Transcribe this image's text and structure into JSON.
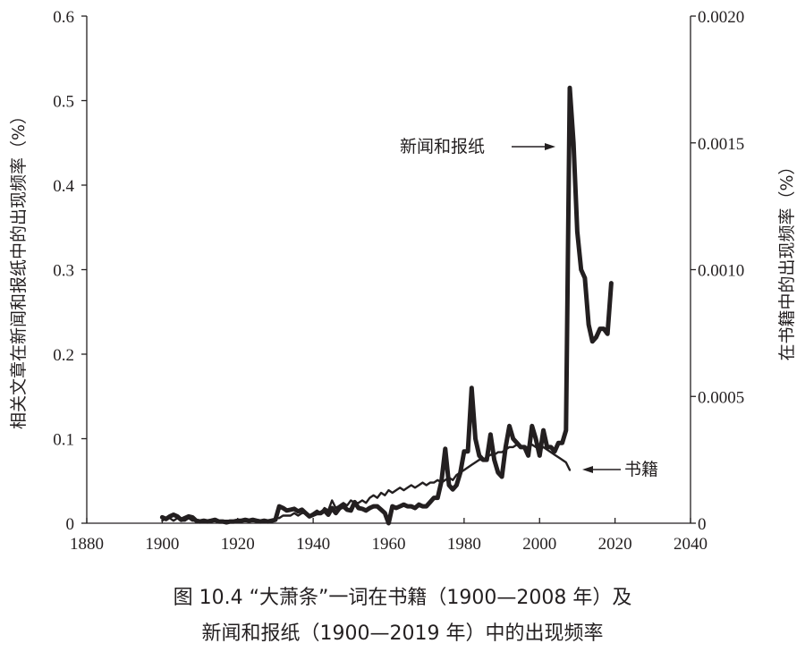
{
  "chart_data": {
    "type": "line",
    "title": "图 10.4  “大萧条”一词在书籍（1900—2008 年）及",
    "title_line2": "新闻和报纸（1900—2019 年）中的出现频率",
    "ylabel_left": "相关文章在新闻和报纸中的出现频率（%）",
    "ylabel_right": "在书籍中的出现频率（%）",
    "xlim": [
      1880,
      2040
    ],
    "ylim_left": [
      0,
      0.6
    ],
    "ylim_right": [
      0,
      0.002
    ],
    "x_ticks": [
      "1880",
      "1900",
      "1920",
      "1940",
      "1960",
      "1980",
      "2000",
      "2020",
      "2040"
    ],
    "y_ticks_left": [
      "0",
      "0.1",
      "0.2",
      "0.3",
      "0.4",
      "0.5",
      "0.6"
    ],
    "y_ticks_right": [
      "0",
      "0.0005",
      "0.0010",
      "0.0015",
      "0.0020"
    ],
    "series": [
      {
        "name": "新闻和报纸",
        "axis": "left",
        "start_year": 1900,
        "color": "#231f20",
        "values": [
          0.007,
          0.005,
          0.008,
          0.01,
          0.008,
          0.004,
          0.006,
          0.008,
          0.007,
          0.003,
          0.002,
          0.003,
          0.002,
          0.003,
          0.004,
          0.002,
          0.002,
          0.001,
          0.002,
          0.002,
          0.003,
          0.003,
          0.004,
          0.003,
          0.004,
          0.003,
          0.002,
          0.003,
          0.002,
          0.003,
          0.004,
          0.02,
          0.018,
          0.015,
          0.016,
          0.017,
          0.014,
          0.016,
          0.012,
          0.008,
          0.01,
          0.012,
          0.012,
          0.015,
          0.01,
          0.018,
          0.012,
          0.018,
          0.02,
          0.016,
          0.015,
          0.025,
          0.018,
          0.017,
          0.015,
          0.018,
          0.02,
          0.02,
          0.016,
          0.012,
          0.0,
          0.02,
          0.018,
          0.02,
          0.022,
          0.02,
          0.02,
          0.018,
          0.022,
          0.02,
          0.02,
          0.025,
          0.03,
          0.03,
          0.05,
          0.088,
          0.045,
          0.04,
          0.045,
          0.06,
          0.085,
          0.085,
          0.16,
          0.1,
          0.08,
          0.075,
          0.075,
          0.105,
          0.075,
          0.06,
          0.055,
          0.09,
          0.115,
          0.1,
          0.095,
          0.09,
          0.09,
          0.08,
          0.115,
          0.1,
          0.08,
          0.11,
          0.09,
          0.09,
          0.085,
          0.095,
          0.095,
          0.11,
          0.515,
          0.45,
          0.345,
          0.3,
          0.29,
          0.235,
          0.215,
          0.22,
          0.23,
          0.23,
          0.224,
          0.284
        ]
      },
      {
        "name": "书籍",
        "axis": "right",
        "start_year": 1900,
        "color": "#231f20",
        "values": [
          1e-05,
          2e-05,
          2e-05,
          1e-05,
          2e-05,
          1e-05,
          1e-05,
          2e-05,
          1e-05,
          1e-05,
          1e-05,
          1e-05,
          1e-05,
          1e-05,
          1e-05,
          1e-05,
          1e-05,
          1e-05,
          1e-05,
          1e-05,
          1e-05,
          1e-05,
          1e-05,
          1e-05,
          1e-05,
          1e-05,
          1e-05,
          1e-05,
          1e-05,
          1e-05,
          2e-05,
          2e-05,
          3e-05,
          3e-05,
          3e-05,
          4e-05,
          3e-05,
          4e-05,
          4e-05,
          3e-05,
          4e-05,
          5e-05,
          4e-05,
          6e-05,
          5e-05,
          9e-05,
          6e-05,
          7e-05,
          8e-05,
          7e-05,
          9e-05,
          8e-05,
          8e-05,
          9e-05,
          8e-05,
          0.0001,
          0.00011,
          0.0001,
          0.00012,
          0.00011,
          0.00013,
          0.00012,
          0.00013,
          0.00014,
          0.00013,
          0.00014,
          0.00015,
          0.00014,
          0.00015,
          0.00016,
          0.00015,
          0.00016,
          0.00016,
          0.00017,
          0.00016,
          0.00017,
          0.00018,
          0.00017,
          0.00019,
          0.0002,
          0.00021,
          0.00022,
          0.00023,
          0.00024,
          0.00025,
          0.00025,
          0.00026,
          0.00027,
          0.00027,
          0.00028,
          0.00028,
          0.00029,
          0.0003,
          0.0003,
          0.00031,
          0.0003,
          0.0003,
          0.0003,
          0.00031,
          0.0003,
          0.00029,
          0.0003,
          0.00029,
          0.00028,
          0.00027,
          0.00026,
          0.00025,
          0.00024,
          0.00021
        ]
      }
    ],
    "annotations": [
      {
        "text": "新闻和报纸",
        "arrow": "right"
      },
      {
        "text": "书籍",
        "arrow": "left"
      }
    ],
    "grid": false
  }
}
